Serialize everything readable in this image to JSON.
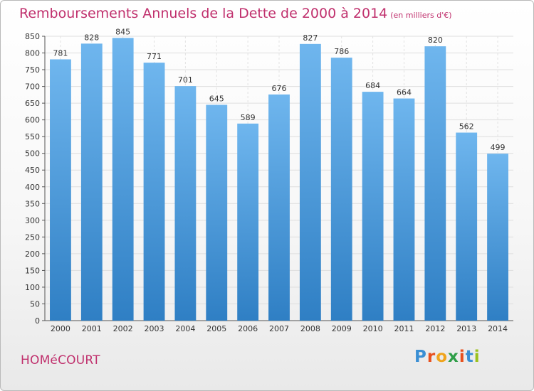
{
  "header": {
    "title": "Remboursements Annuels de la Dette de 2000 à 2014",
    "subtitle": "(en milliers d'€)"
  },
  "footer": {
    "commune": "HOMéCOURT",
    "logo_letters": [
      "P",
      "r",
      "o",
      "x",
      "i",
      "t",
      "i"
    ],
    "logo_colors": [
      "#3a8fd4",
      "#e8501e",
      "#f0a41c",
      "#2e9e48",
      "#e8501e",
      "#3a8fd4",
      "#9bc11d"
    ]
  },
  "chart_data": {
    "type": "bar",
    "title": "Remboursements Annuels de la Dette de 2000 à 2014",
    "subtitle": "(en milliers d'€)",
    "xlabel": "",
    "ylabel": "",
    "categories": [
      "2000",
      "2001",
      "2002",
      "2003",
      "2004",
      "2005",
      "2006",
      "2007",
      "2008",
      "2009",
      "2010",
      "2011",
      "2012",
      "2013",
      "2014"
    ],
    "values": [
      781,
      828,
      845,
      771,
      701,
      645,
      589,
      676,
      827,
      786,
      684,
      664,
      820,
      562,
      499
    ],
    "ylim": [
      0,
      850
    ],
    "yticks": [
      0,
      50,
      100,
      150,
      200,
      250,
      300,
      350,
      400,
      450,
      500,
      550,
      600,
      650,
      700,
      750,
      800,
      850
    ],
    "grid": true,
    "legend": "none",
    "bar_color_top": "#6fb6ee",
    "bar_color_bottom": "#2f7fc4"
  }
}
